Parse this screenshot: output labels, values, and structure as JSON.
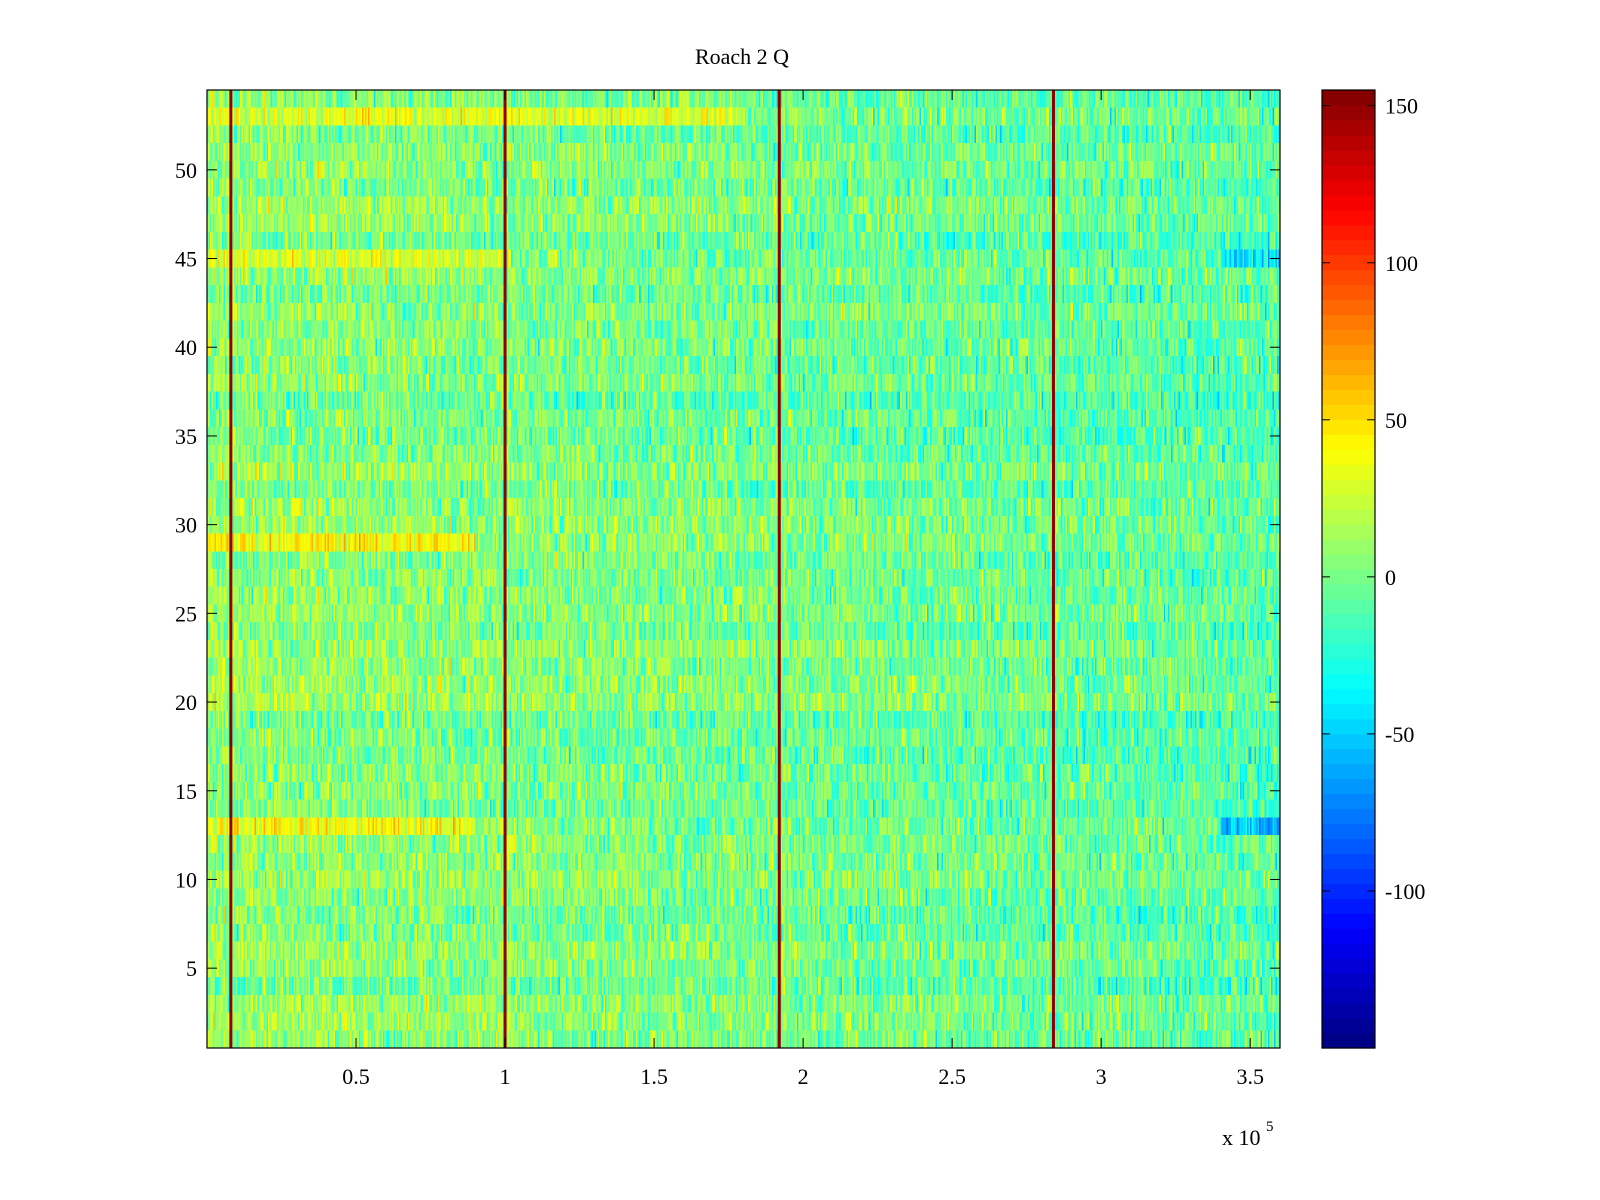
{
  "chart_data": {
    "type": "heatmap",
    "title": "Roach 2 Q",
    "xlabel": "",
    "ylabel": "",
    "x_exponent_label": "x 10",
    "x_exponent_power": "5",
    "xlim": [
      0,
      360000
    ],
    "ylim": [
      0.5,
      54.5
    ],
    "rows": 54,
    "columns_estimate": 720,
    "x_ticks": [
      {
        "value": 50000,
        "label": "0.5"
      },
      {
        "value": 100000,
        "label": "1"
      },
      {
        "value": 150000,
        "label": "1.5"
      },
      {
        "value": 200000,
        "label": "2"
      },
      {
        "value": 250000,
        "label": "2.5"
      },
      {
        "value": 300000,
        "label": "3"
      },
      {
        "value": 350000,
        "label": "3.5"
      }
    ],
    "y_ticks": [
      {
        "value": 5,
        "label": "5"
      },
      {
        "value": 10,
        "label": "10"
      },
      {
        "value": 15,
        "label": "15"
      },
      {
        "value": 20,
        "label": "20"
      },
      {
        "value": 25,
        "label": "25"
      },
      {
        "value": 30,
        "label": "30"
      },
      {
        "value": 35,
        "label": "35"
      },
      {
        "value": 40,
        "label": "40"
      },
      {
        "value": 45,
        "label": "45"
      },
      {
        "value": 50,
        "label": "50"
      }
    ],
    "colorbar": {
      "colormap": "jet",
      "range": [
        -150,
        155
      ],
      "ticks": [
        {
          "value": 150,
          "label": "150"
        },
        {
          "value": 100,
          "label": "100"
        },
        {
          "value": 50,
          "label": "50"
        },
        {
          "value": 0,
          "label": "0"
        },
        {
          "value": -50,
          "label": "-50"
        },
        {
          "value": -100,
          "label": "-100"
        }
      ]
    },
    "spike_columns": [
      {
        "x": 8000,
        "value": 150
      },
      {
        "x": 100000,
        "value": 150
      },
      {
        "x": 192000,
        "value": 150
      },
      {
        "x": 284000,
        "value": 150
      }
    ],
    "row_features": [
      {
        "row": 13,
        "x_range": [
          0,
          90000
        ],
        "value": 55
      },
      {
        "row": 13,
        "x_range": [
          340000,
          360000
        ],
        "value": -80
      },
      {
        "row": 29,
        "x_range": [
          0,
          90000
        ],
        "value": 60
      },
      {
        "row": 45,
        "x_range": [
          0,
          100000
        ],
        "value": 40
      },
      {
        "row": 45,
        "x_range": [
          340000,
          360000
        ],
        "value": -60
      },
      {
        "row": 53,
        "x_range": [
          0,
          180000
        ],
        "value": 45
      }
    ],
    "background_mean": 0,
    "background_range": [
      -40,
      40
    ]
  }
}
